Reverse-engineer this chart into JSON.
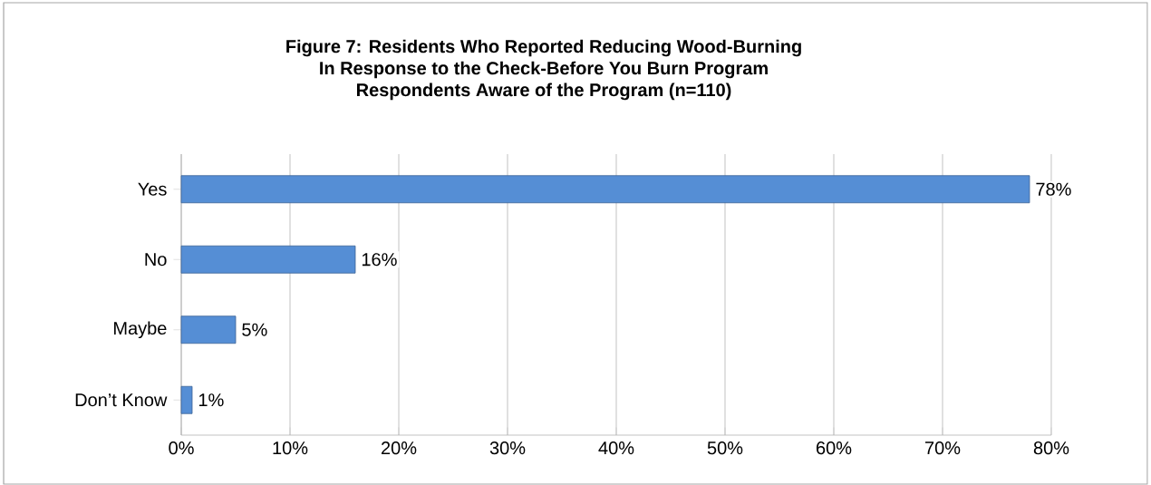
{
  "chart_data": {
    "type": "bar",
    "orientation": "horizontal",
    "title": "Figure 7: Residents Who Reported Reducing Wood-Burning\nIn Response to the Check-Before You Burn Program\nRespondents Aware of the Program (n=110)",
    "categories": [
      "Yes",
      "No",
      "Maybe",
      "Don’t Know"
    ],
    "values": [
      78,
      16,
      5,
      1
    ],
    "value_labels": [
      "78%",
      "16%",
      "5%",
      "1%"
    ],
    "color": "#558ed5",
    "xlim": [
      0,
      80
    ],
    "xticks": [
      {
        "value": 0,
        "label": "0%"
      },
      {
        "value": 10,
        "label": "10%"
      },
      {
        "value": 20,
        "label": "20%"
      },
      {
        "value": 30,
        "label": "30%"
      },
      {
        "value": 40,
        "label": "40%"
      },
      {
        "value": 50,
        "label": "50%"
      },
      {
        "value": 60,
        "label": "60%"
      },
      {
        "value": 70,
        "label": "70%"
      },
      {
        "value": 80,
        "label": "80%"
      }
    ],
    "grid": "x"
  }
}
